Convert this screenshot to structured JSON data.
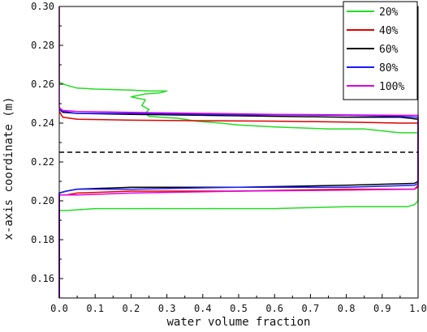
{
  "chart_data": {
    "type": "line",
    "title": "",
    "xlabel": "water volume fraction",
    "ylabel": "x-axis coordinate (m)",
    "xlim": [
      0.0,
      1.0
    ],
    "ylim": [
      0.15,
      0.3
    ],
    "x_ticks": [
      "0.0",
      "0.1",
      "0.2",
      "0.3",
      "0.4",
      "0.5",
      "0.6",
      "0.7",
      "0.8",
      "0.9",
      "1.0"
    ],
    "y_ticks": [
      "0.16",
      "0.18",
      "0.20",
      "0.22",
      "0.24",
      "0.26",
      "0.28",
      "0.30"
    ],
    "grid": false,
    "legend_position": "top-right",
    "reference_line": {
      "y": 0.225,
      "style": "dashed",
      "color": "#000000"
    },
    "series": [
      {
        "name": "20%",
        "color": "#22dd22",
        "points": [
          [
            0.0,
            0.15
          ],
          [
            0.0,
            0.195
          ],
          [
            0.02,
            0.195
          ],
          [
            0.1,
            0.196
          ],
          [
            0.3,
            0.196
          ],
          [
            0.6,
            0.196
          ],
          [
            0.8,
            0.197
          ],
          [
            0.97,
            0.197
          ],
          [
            0.99,
            0.198
          ],
          [
            1.0,
            0.2
          ],
          [
            1.0,
            0.235
          ],
          [
            0.95,
            0.235
          ],
          [
            0.85,
            0.237
          ],
          [
            0.75,
            0.237
          ],
          [
            0.6,
            0.238
          ],
          [
            0.5,
            0.239
          ],
          [
            0.45,
            0.24
          ],
          [
            0.38,
            0.241
          ],
          [
            0.35,
            0.242
          ],
          [
            0.33,
            0.2425
          ],
          [
            0.28,
            0.243
          ],
          [
            0.25,
            0.2435
          ],
          [
            0.24,
            0.245
          ],
          [
            0.25,
            0.247
          ],
          [
            0.23,
            0.249
          ],
          [
            0.24,
            0.252
          ],
          [
            0.2,
            0.2535
          ],
          [
            0.24,
            0.255
          ],
          [
            0.28,
            0.2555
          ],
          [
            0.3,
            0.2565
          ],
          [
            0.25,
            0.2565
          ],
          [
            0.2,
            0.257
          ],
          [
            0.1,
            0.2575
          ],
          [
            0.05,
            0.258
          ],
          [
            0.02,
            0.2595
          ],
          [
            0.0,
            0.261
          ],
          [
            0.0,
            0.3
          ]
        ]
      },
      {
        "name": "40%",
        "color": "#e00000",
        "points": [
          [
            0.0,
            0.15
          ],
          [
            0.0,
            0.203
          ],
          [
            0.02,
            0.203
          ],
          [
            0.05,
            0.204
          ],
          [
            0.2,
            0.205
          ],
          [
            0.5,
            0.205
          ],
          [
            0.8,
            0.206
          ],
          [
            0.99,
            0.206
          ],
          [
            1.0,
            0.208
          ],
          [
            1.0,
            0.24
          ],
          [
            0.95,
            0.24
          ],
          [
            0.8,
            0.2405
          ],
          [
            0.6,
            0.241
          ],
          [
            0.4,
            0.2412
          ],
          [
            0.2,
            0.2415
          ],
          [
            0.05,
            0.242
          ],
          [
            0.01,
            0.243
          ],
          [
            0.0,
            0.246
          ]
        ]
      },
      {
        "name": "60%",
        "color": "#000000",
        "points": [
          [
            0.0,
            0.15
          ],
          [
            0.0,
            0.204
          ],
          [
            0.02,
            0.205
          ],
          [
            0.05,
            0.206
          ],
          [
            0.2,
            0.207
          ],
          [
            0.5,
            0.207
          ],
          [
            0.8,
            0.208
          ],
          [
            0.99,
            0.209
          ],
          [
            1.0,
            0.21
          ],
          [
            1.0,
            0.242
          ],
          [
            0.95,
            0.243
          ],
          [
            0.8,
            0.243
          ],
          [
            0.6,
            0.2435
          ],
          [
            0.4,
            0.244
          ],
          [
            0.2,
            0.2445
          ],
          [
            0.05,
            0.245
          ],
          [
            0.01,
            0.2455
          ],
          [
            0.0,
            0.247
          ]
        ]
      },
      {
        "name": "80%",
        "color": "#1a1aff",
        "points": [
          [
            0.0,
            0.15
          ],
          [
            0.0,
            0.204
          ],
          [
            0.02,
            0.205
          ],
          [
            0.05,
            0.206
          ],
          [
            0.2,
            0.206
          ],
          [
            0.5,
            0.207
          ],
          [
            0.8,
            0.207
          ],
          [
            0.99,
            0.208
          ],
          [
            1.0,
            0.209
          ],
          [
            1.0,
            0.243
          ],
          [
            0.95,
            0.2435
          ],
          [
            0.8,
            0.244
          ],
          [
            0.6,
            0.2442
          ],
          [
            0.4,
            0.2445
          ],
          [
            0.2,
            0.245
          ],
          [
            0.05,
            0.245
          ],
          [
            0.01,
            0.246
          ],
          [
            0.0,
            0.247
          ]
        ]
      },
      {
        "name": "100%",
        "color": "#e000e0",
        "points": [
          [
            0.0,
            0.15
          ],
          [
            0.0,
            0.203
          ],
          [
            0.05,
            0.203
          ],
          [
            0.2,
            0.204
          ],
          [
            0.5,
            0.205
          ],
          [
            0.8,
            0.2055
          ],
          [
            0.99,
            0.206
          ],
          [
            1.0,
            0.207
          ],
          [
            1.0,
            0.244
          ],
          [
            0.95,
            0.244
          ],
          [
            0.8,
            0.2442
          ],
          [
            0.6,
            0.2445
          ],
          [
            0.4,
            0.245
          ],
          [
            0.2,
            0.2455
          ],
          [
            0.05,
            0.246
          ],
          [
            0.01,
            0.2465
          ],
          [
            0.0,
            0.248
          ],
          [
            0.0,
            0.3
          ]
        ]
      }
    ]
  }
}
